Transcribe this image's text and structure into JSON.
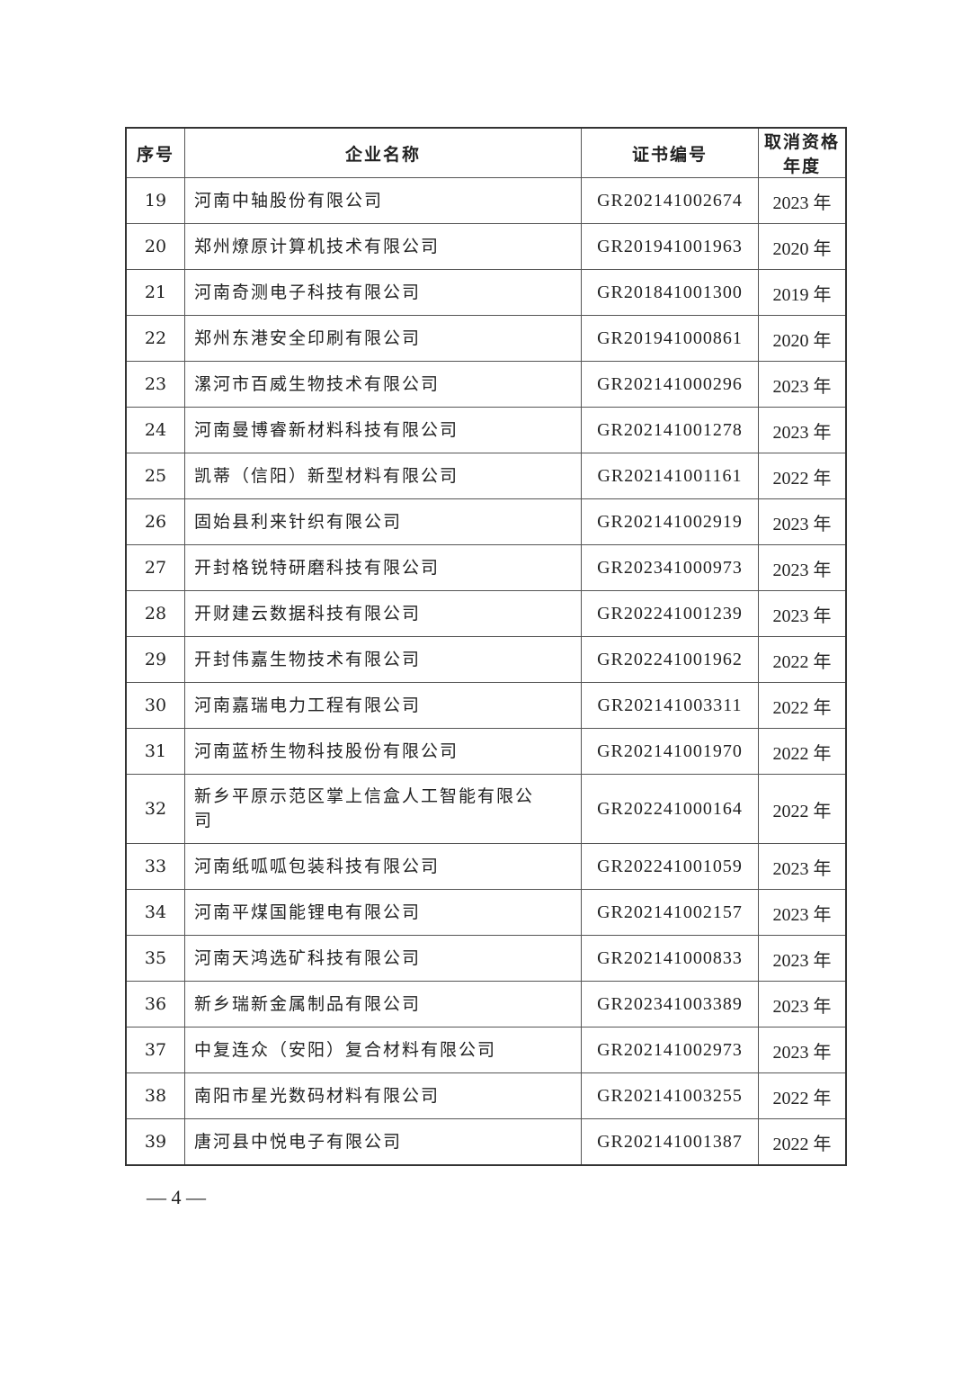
{
  "table": {
    "headers": [
      "序号",
      "企业名称",
      "证书编号",
      "取消资格年度"
    ],
    "rows": [
      [
        "19",
        "河南中轴股份有限公司",
        "GR202141002674",
        "2023 年"
      ],
      [
        "20",
        "郑州燎原计算机技术有限公司",
        "GR201941001963",
        "2020 年"
      ],
      [
        "21",
        "河南奇测电子科技有限公司",
        "GR201841001300",
        "2019 年"
      ],
      [
        "22",
        "郑州东港安全印刷有限公司",
        "GR201941000861",
        "2020 年"
      ],
      [
        "23",
        "漯河市百威生物技术有限公司",
        "GR202141000296",
        "2023 年"
      ],
      [
        "24",
        "河南曼博睿新材料科技有限公司",
        "GR202141001278",
        "2023 年"
      ],
      [
        "25",
        "凯蒂（信阳）新型材料有限公司",
        "GR202141001161",
        "2022 年"
      ],
      [
        "26",
        "固始县利来针织有限公司",
        "GR202141002919",
        "2023 年"
      ],
      [
        "27",
        "开封格锐特研磨科技有限公司",
        "GR202341000973",
        "2023 年"
      ],
      [
        "28",
        "开财建云数据科技有限公司",
        "GR202241001239",
        "2023 年"
      ],
      [
        "29",
        "开封伟嘉生物技术有限公司",
        "GR202241001962",
        "2022 年"
      ],
      [
        "30",
        "河南嘉瑞电力工程有限公司",
        "GR202141003311",
        "2022 年"
      ],
      [
        "31",
        "河南蓝桥生物科技股份有限公司",
        "GR202141001970",
        "2022 年"
      ],
      [
        "32",
        "新乡平原示范区掌上信盒人工智能有限公司",
        "GR202241000164",
        "2022 年"
      ],
      [
        "33",
        "河南纸呱呱包装科技有限公司",
        "GR202241001059",
        "2023 年"
      ],
      [
        "34",
        "河南平煤国能锂电有限公司",
        "GR202141002157",
        "2023 年"
      ],
      [
        "35",
        "河南天鸿选矿科技有限公司",
        "GR202141000833",
        "2023 年"
      ],
      [
        "36",
        "新乡瑞新金属制品有限公司",
        "GR202341003389",
        "2023 年"
      ],
      [
        "37",
        "中复连众（安阳）复合材料有限公司",
        "GR202141002973",
        "2023 年"
      ],
      [
        "38",
        "南阳市星光数码材料有限公司",
        "GR202141003255",
        "2022 年"
      ],
      [
        "39",
        "唐河县中悦电子有限公司",
        "GR202141001387",
        "2022 年"
      ]
    ]
  },
  "footer": {
    "page": "— 4 —"
  }
}
